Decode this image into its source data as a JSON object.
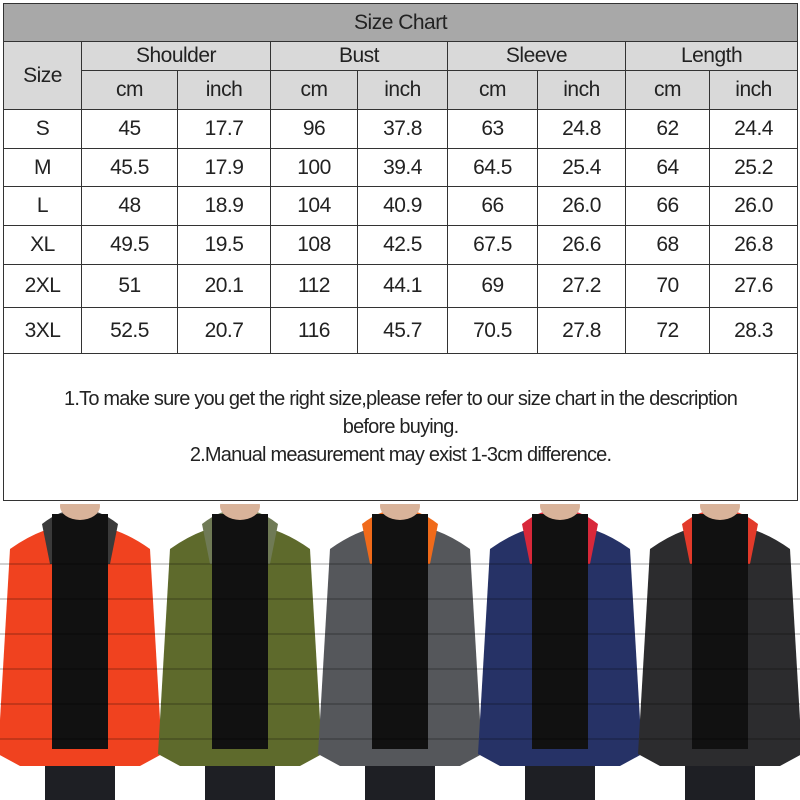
{
  "title": "Size Chart",
  "headers": {
    "size": "Size",
    "groups": [
      "Shoulder",
      "Bust",
      "Sleeve",
      "Length"
    ],
    "units": [
      "cm",
      "inch",
      "cm",
      "inch",
      "cm",
      "inch",
      "cm",
      "inch"
    ]
  },
  "rows": [
    [
      "S",
      "45",
      "17.7",
      "96",
      "37.8",
      "63",
      "24.8",
      "62",
      "24.4"
    ],
    [
      "M",
      "45.5",
      "17.9",
      "100",
      "39.4",
      "64.5",
      "25.4",
      "64",
      "25.2"
    ],
    [
      "L",
      "48",
      "18.9",
      "104",
      "40.9",
      "66",
      "26.0",
      "66",
      "26.0"
    ],
    [
      "XL",
      "49.5",
      "19.5",
      "108",
      "42.5",
      "67.5",
      "26.6",
      "68",
      "26.8"
    ],
    [
      "2XL",
      "51",
      "20.1",
      "112",
      "44.1",
      "69",
      "27.2",
      "70",
      "27.6"
    ],
    [
      "3XL",
      "52.5",
      "20.7",
      "116",
      "45.7",
      "70.5",
      "27.8",
      "72",
      "28.3"
    ]
  ],
  "notes": [
    "1.To make sure you get the right size,please refer to our size chart in the description before buying.",
    "2.Manual measurement may exist 1-3cm difference."
  ],
  "jackets": [
    {
      "color": "#f0421f",
      "hood": "#3a3a3a"
    },
    {
      "color": "#5e6a2c",
      "hood": "#6f7a55"
    },
    {
      "color": "#55575b",
      "hood": "#f06a1a"
    },
    {
      "color": "#263266",
      "hood": "#d8283a"
    },
    {
      "color": "#2c2c2e",
      "hood": "#e23a2a"
    }
  ]
}
